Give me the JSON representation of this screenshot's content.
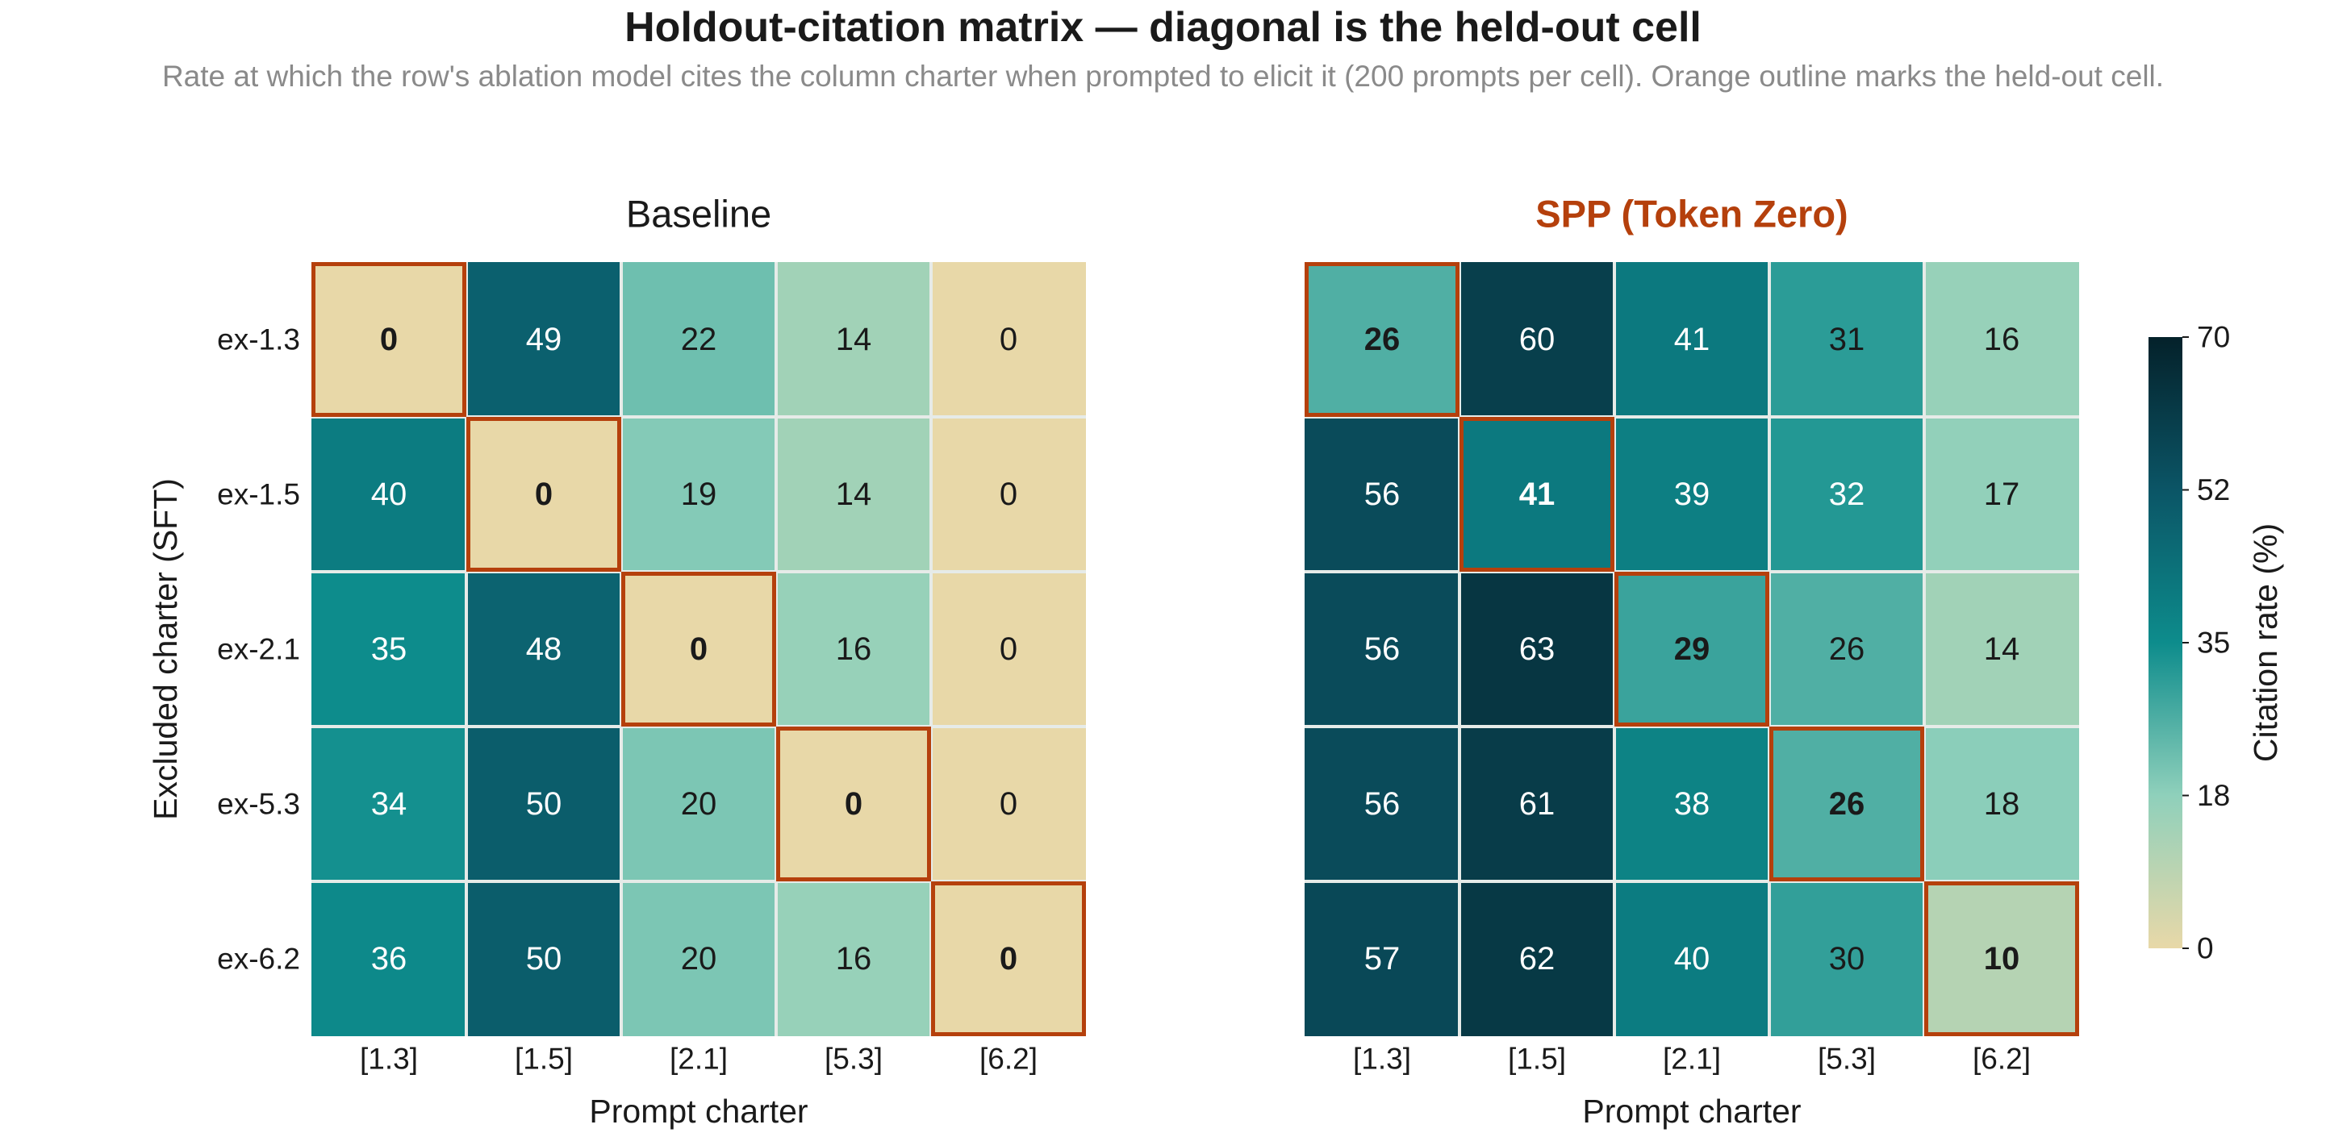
{
  "title": "Holdout-citation matrix — diagonal is the held-out cell",
  "subtitle": "Rate at which the row's ablation model cites the column charter when prompted to elicit it (200 prompts per cell). Orange outline marks the held-out cell.",
  "chart_data": [
    {
      "type": "heatmap",
      "title": "Baseline",
      "title_color": "#1a1a1a",
      "xlabel": "Prompt charter",
      "ylabel": "Excluded charter (SFT)",
      "x_categories": [
        "[1.3]",
        "[1.5]",
        "[2.1]",
        "[5.3]",
        "[6.2]"
      ],
      "y_categories": [
        "ex-1.3",
        "ex-1.5",
        "ex-2.1",
        "ex-5.3",
        "ex-6.2"
      ],
      "values": [
        [
          0,
          49,
          22,
          14,
          0
        ],
        [
          40,
          0,
          19,
          14,
          0
        ],
        [
          35,
          48,
          0,
          16,
          0
        ],
        [
          34,
          50,
          20,
          0,
          0
        ],
        [
          36,
          50,
          20,
          16,
          0
        ]
      ],
      "highlight": "diagonal"
    },
    {
      "type": "heatmap",
      "title": "SPP (Token Zero)",
      "title_color": "#b5400c",
      "xlabel": "Prompt charter",
      "ylabel": "",
      "x_categories": [
        "[1.3]",
        "[1.5]",
        "[2.1]",
        "[5.3]",
        "[6.2]"
      ],
      "y_categories": [
        "ex-1.3",
        "ex-1.5",
        "ex-2.1",
        "ex-5.3",
        "ex-6.2"
      ],
      "values": [
        [
          26,
          60,
          41,
          31,
          16
        ],
        [
          56,
          41,
          39,
          32,
          17
        ],
        [
          56,
          63,
          29,
          26,
          14
        ],
        [
          56,
          61,
          38,
          26,
          18
        ],
        [
          57,
          62,
          40,
          30,
          10
        ]
      ],
      "highlight": "diagonal"
    }
  ],
  "colorbar": {
    "label": "Citation rate (%)",
    "range": [
      0,
      70
    ],
    "ticks": [
      "0",
      "18",
      "35",
      "52",
      "70"
    ],
    "tick_values": [
      0,
      17.5,
      35,
      52.5,
      70
    ],
    "colors": [
      "#e8d8a8",
      "#8fd0bb",
      "#0d8c8c",
      "#0b5566",
      "#04212a"
    ]
  },
  "colors": {
    "highlight_outline": "#b5400c",
    "grid_line": "#e6ebe8"
  }
}
